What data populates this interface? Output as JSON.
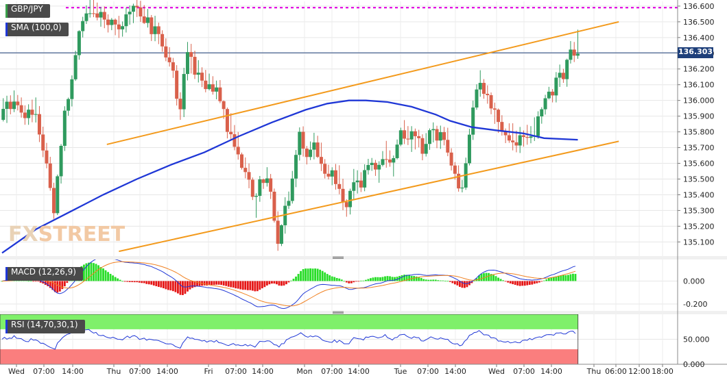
{
  "chart_data": {
    "type": "candlestick",
    "panels": {
      "price": {
        "symbol": "GBP/JPY",
        "indicator_label": "SMA (100,0)",
        "current_price": "136.303",
        "y_ticks": [
          "136.600",
          "136.500",
          "136.400",
          "136.300",
          "136.200",
          "136.100",
          "136.000",
          "135.900",
          "135.800",
          "135.700",
          "135.600",
          "135.500",
          "135.400",
          "135.300",
          "135.200",
          "135.100"
        ],
        "ylim": [
          135.01,
          136.63
        ],
        "resistance_level": 136.59,
        "sma": [
          [
            0,
            135.03
          ],
          [
            28,
            135.18
          ],
          [
            56,
            135.29
          ],
          [
            84,
            135.4
          ],
          [
            112,
            135.5
          ],
          [
            140,
            135.59
          ],
          [
            168,
            135.67
          ],
          [
            196,
            135.77
          ],
          [
            224,
            135.86
          ],
          [
            252,
            135.94
          ],
          [
            270,
            135.98
          ],
          [
            288,
            136.0
          ],
          [
            302,
            136.0
          ],
          [
            320,
            135.99
          ],
          [
            340,
            135.96
          ],
          [
            360,
            135.91
          ],
          [
            372,
            135.87
          ],
          [
            390,
            135.83
          ],
          [
            410,
            135.81
          ],
          [
            433,
            135.79
          ],
          [
            450,
            135.76
          ],
          [
            478,
            135.75
          ]
        ],
        "channel_upper": [
          [
            87,
            135.72
          ],
          [
            512,
            136.5
          ]
        ],
        "channel_lower": [
          [
            97,
            135.04
          ],
          [
            512,
            135.74
          ]
        ]
      },
      "macd": {
        "label": "MACD (12,26,9)",
        "y_ticks": [
          "0.000",
          "-0.200"
        ],
        "ylim": [
          -0.26,
          0.17
        ]
      },
      "rsi": {
        "label": "RSI (14,70,30,1)",
        "y_ticks": [
          "50.000",
          "0.000"
        ],
        "ylim": [
          0,
          100
        ],
        "overbought": 70,
        "oversold": 30
      }
    },
    "x_ticks": [
      "Wed",
      "07:00",
      "14:00",
      "Thu",
      "07:00",
      "14:00",
      "Fri",
      "07:00",
      "14:00",
      "Mon",
      "07:00",
      "14:00",
      "Tue",
      "07:00",
      "14:00",
      "Wed",
      "07:00",
      "14:00",
      "Thu",
      "06:00",
      "12:00",
      "18:00"
    ],
    "bars": 478,
    "seed": 7,
    "candle_path": [
      [
        0,
        135.92
      ],
      [
        10,
        136.0
      ],
      [
        20,
        135.9
      ],
      [
        28,
        135.95
      ],
      [
        38,
        135.62
      ],
      [
        44,
        135.3
      ],
      [
        52,
        135.85
      ],
      [
        62,
        136.32
      ],
      [
        70,
        136.55
      ],
      [
        76,
        136.58
      ],
      [
        88,
        136.5
      ],
      [
        98,
        136.45
      ],
      [
        110,
        136.58
      ],
      [
        122,
        136.5
      ],
      [
        132,
        136.38
      ],
      [
        140,
        136.28
      ],
      [
        148,
        135.92
      ],
      [
        154,
        136.3
      ],
      [
        162,
        136.18
      ],
      [
        172,
        136.1
      ],
      [
        180,
        136.05
      ],
      [
        186,
        135.88
      ],
      [
        195,
        135.72
      ],
      [
        200,
        135.6
      ],
      [
        206,
        135.5
      ],
      [
        210,
        135.32
      ],
      [
        216,
        135.52
      ],
      [
        224,
        135.45
      ],
      [
        230,
        135.1
      ],
      [
        236,
        135.3
      ],
      [
        242,
        135.46
      ],
      [
        248,
        135.78
      ],
      [
        254,
        135.65
      ],
      [
        260,
        135.74
      ],
      [
        266,
        135.6
      ],
      [
        272,
        135.54
      ],
      [
        280,
        135.5
      ],
      [
        286,
        135.3
      ],
      [
        292,
        135.5
      ],
      [
        300,
        135.47
      ],
      [
        306,
        135.62
      ],
      [
        312,
        135.52
      ],
      [
        318,
        135.68
      ],
      [
        324,
        135.6
      ],
      [
        332,
        135.82
      ],
      [
        338,
        135.75
      ],
      [
        344,
        135.78
      ],
      [
        350,
        135.68
      ],
      [
        356,
        135.8
      ],
      [
        362,
        135.75
      ],
      [
        368,
        135.78
      ],
      [
        374,
        135.6
      ],
      [
        382,
        135.42
      ],
      [
        390,
        135.85
      ],
      [
        396,
        136.1
      ],
      [
        404,
        136.02
      ],
      [
        410,
        135.9
      ],
      [
        418,
        135.8
      ],
      [
        426,
        135.76
      ],
      [
        432,
        135.74
      ],
      [
        438,
        135.8
      ],
      [
        444,
        135.82
      ],
      [
        450,
        135.95
      ],
      [
        456,
        136.05
      ],
      [
        462,
        136.12
      ],
      [
        468,
        136.18
      ],
      [
        472,
        136.28
      ],
      [
        478,
        136.3
      ]
    ]
  }
}
